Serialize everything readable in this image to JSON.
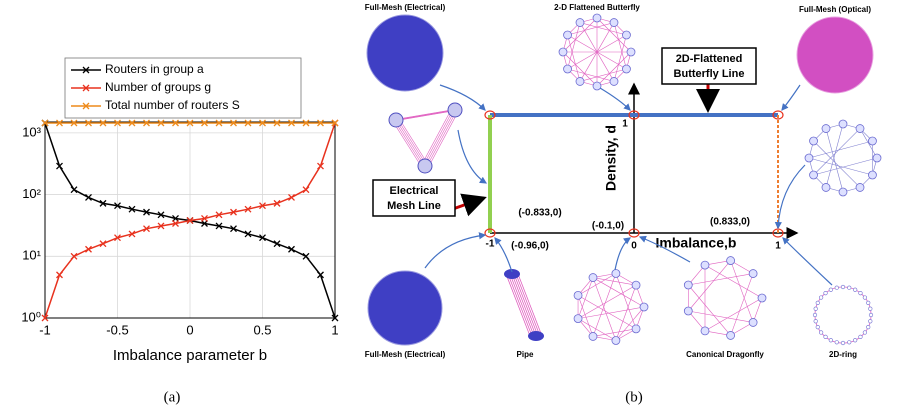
{
  "chart_data": {
    "type": "line",
    "x": [
      -1,
      -0.9,
      -0.8,
      -0.7,
      -0.6,
      -0.5,
      -0.4,
      -0.3,
      -0.2,
      -0.1,
      0,
      0.1,
      0.2,
      0.3,
      0.4,
      0.5,
      0.6,
      0.7,
      0.8,
      0.9,
      1
    ],
    "series": [
      {
        "name": "Routers in group a",
        "color": "#000000",
        "values": [
          1444,
          290,
          120,
          90,
          72,
          66,
          58,
          52,
          47,
          41,
          38,
          34,
          31,
          28,
          23,
          20,
          16,
          13,
          10,
          5,
          1
        ]
      },
      {
        "name": "Number of groups g",
        "color": "#e8321e",
        "values": [
          1,
          5,
          10,
          13,
          16,
          20,
          23,
          28,
          31,
          34,
          38,
          41,
          47,
          52,
          58,
          66,
          72,
          90,
          120,
          290,
          1444
        ]
      },
      {
        "name": "Total number of routers S",
        "color": "#ee8a1a",
        "values": [
          1444,
          1444,
          1444,
          1444,
          1444,
          1444,
          1444,
          1444,
          1444,
          1444,
          1444,
          1444,
          1444,
          1444,
          1444,
          1444,
          1444,
          1444,
          1444,
          1444,
          1444
        ]
      }
    ],
    "x_label": "Imbalance parameter b",
    "xlim": [
      -1,
      1
    ],
    "xticks": [
      -1,
      -0.5,
      0,
      0.5,
      1
    ],
    "ylim": [
      1,
      1500
    ],
    "y_scale": "log",
    "yticks": [
      {
        "value": 1,
        "label": "10⁰"
      },
      {
        "value": 10,
        "label": "10¹"
      },
      {
        "value": 100,
        "label": "10²"
      },
      {
        "value": 1000,
        "label": "10³"
      }
    ],
    "grid": true,
    "legend": "top"
  },
  "captions": [
    "(a)",
    "(b)"
  ],
  "diagram": {
    "topologies": [
      "Full-Mesh (Electrical)",
      "2-D Flattened Butterfly",
      "Full-Mesh (Optical)",
      "Full-Mesh (Electrical)",
      "Pipe",
      "Canonical Dragonfly",
      "2D-ring"
    ],
    "callouts": [
      [
        "2D-Flattened",
        "Butterfly Line"
      ],
      [
        "Electrical",
        "Mesh Line"
      ]
    ],
    "axis_labels": [
      "Density, d",
      "Imbalance,b"
    ],
    "axis_numbers": [
      "1",
      "-1",
      "0",
      "1"
    ],
    "points": [
      "(-0.833,0)",
      "(-0.1,0)",
      "(0.833,0)",
      "(-0.96,0)"
    ]
  }
}
